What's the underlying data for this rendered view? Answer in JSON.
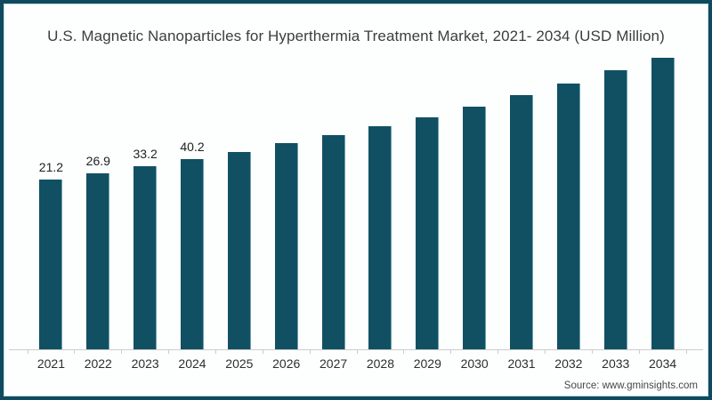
{
  "chart_data": {
    "type": "bar",
    "title": "U.S. Magnetic Nanoparticles for Hyperthermia Treatment Market, 2021- 2034 (USD Million)",
    "categories": [
      "2021",
      "2022",
      "2023",
      "2024",
      "2025",
      "2026",
      "2027",
      "2028",
      "2029",
      "2030",
      "2031",
      "2032",
      "2033",
      "2034"
    ],
    "values": [
      21.2,
      26.9,
      33.2,
      40.2,
      46.9,
      55.1,
      62.5,
      70.8,
      79.1,
      88.9,
      99.7,
      110.4,
      122.8,
      134.4
    ],
    "data_labels_shown": [
      "21.2",
      "26.9",
      "33.2",
      "40.2"
    ],
    "xlabel": "",
    "ylabel": "",
    "value_axis_visible": false,
    "grid": false,
    "legend": false,
    "bar_color": "#115063"
  },
  "colors": {
    "bar": "#115063",
    "frame_border": "#0f4a5f",
    "background": "#fdfefe",
    "title_text": "#3d3d3d",
    "axis_line": "#cccccc",
    "tick_label_text": "#2e2e2e",
    "data_label_text": "#1f1f1f",
    "source_text": "#474747"
  },
  "source": {
    "label": "Source: www.gminsights.com"
  }
}
